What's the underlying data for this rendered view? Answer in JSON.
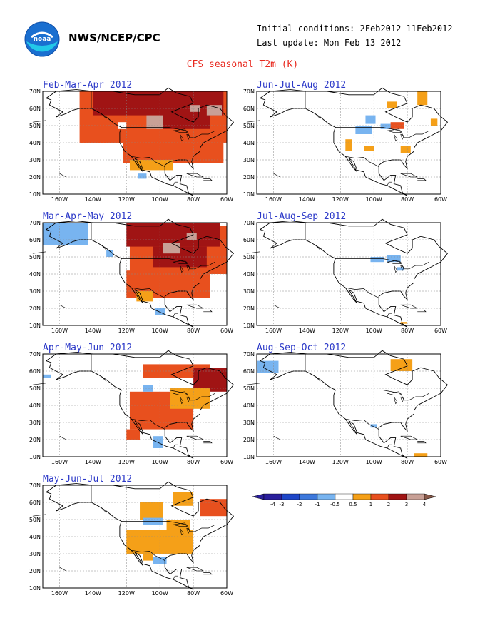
{
  "header": {
    "agency": "NWS/NCEP/CPC",
    "initial_conditions": "Initial conditions: 2Feb2012-11Feb2012",
    "last_update": "Last update: Mon Feb 13 2012",
    "title": "CFS seasonal T2m (K)",
    "logo_icon": "noaa-logo-icon"
  },
  "axes": {
    "lat_labels": [
      "70N",
      "60N",
      "50N",
      "40N",
      "30N",
      "20N",
      "10N"
    ],
    "lon_labels": [
      "160W",
      "140W",
      "120W",
      "100W",
      "80W",
      "60W"
    ]
  },
  "colors": {
    "-4": "#2a1f9c",
    "-3": "#1e46c8",
    "-2": "#3c78dc",
    "-1": "#78b4f0",
    "0": "#ffffff",
    "1": "#f5a018",
    "2": "#e8501e",
    "3": "#a01414",
    "4": "#c8a096"
  },
  "panels": [
    {
      "title": "Feb-Mar-Apr 2012",
      "patches": [
        {
          "lon": [
            -148,
            -60
          ],
          "lat": [
            40,
            70
          ],
          "c": 2
        },
        {
          "lon": [
            -122,
            -62
          ],
          "lat": [
            28,
            40
          ],
          "c": 2
        },
        {
          "lon": [
            -118,
            -92
          ],
          "lat": [
            24,
            30
          ],
          "c": 1
        },
        {
          "lon": [
            -140,
            -62
          ],
          "lat": [
            56,
            70
          ],
          "c": 3
        },
        {
          "lon": [
            -100,
            -70
          ],
          "lat": [
            48,
            60
          ],
          "c": 3
        },
        {
          "lon": [
            -108,
            -98
          ],
          "lat": [
            48,
            56
          ],
          "c": 4
        },
        {
          "lon": [
            -82,
            -76
          ],
          "lat": [
            58,
            62
          ],
          "c": 4
        },
        {
          "lon": [
            -72,
            -63
          ],
          "lat": [
            56,
            62
          ],
          "c": 4
        },
        {
          "lon": [
            -113,
            -108
          ],
          "lat": [
            19,
            22
          ],
          "c": -1
        },
        {
          "lon": [
            -125,
            -120
          ],
          "lat": [
            48,
            52
          ],
          "c": 0
        }
      ]
    },
    {
      "title": "Jun-Jul-Aug 2012",
      "patches": [
        {
          "lon": [
            -105,
            -99
          ],
          "lat": [
            51,
            56
          ],
          "c": -1
        },
        {
          "lon": [
            -111,
            -101
          ],
          "lat": [
            45,
            50
          ],
          "c": -1
        },
        {
          "lon": [
            -96,
            -88
          ],
          "lat": [
            48,
            51
          ],
          "c": -1
        },
        {
          "lon": [
            -92,
            -86
          ],
          "lat": [
            60,
            64
          ],
          "c": 1
        },
        {
          "lon": [
            -74,
            -68
          ],
          "lat": [
            62,
            70
          ],
          "c": 1
        },
        {
          "lon": [
            -66,
            -62
          ],
          "lat": [
            50,
            54
          ],
          "c": 1
        },
        {
          "lon": [
            -117,
            -113
          ],
          "lat": [
            35,
            42
          ],
          "c": 1
        },
        {
          "lon": [
            -106,
            -100
          ],
          "lat": [
            35,
            38
          ],
          "c": 1
        },
        {
          "lon": [
            -84,
            -78
          ],
          "lat": [
            34,
            38
          ],
          "c": 1
        },
        {
          "lon": [
            -90,
            -82
          ],
          "lat": [
            48,
            52
          ],
          "c": 2
        }
      ]
    },
    {
      "title": "Mar-Apr-May 2012",
      "patches": [
        {
          "lon": [
            -170,
            -143
          ],
          "lat": [
            57,
            70
          ],
          "c": -1
        },
        {
          "lon": [
            -132,
            -128
          ],
          "lat": [
            50,
            54
          ],
          "c": -1
        },
        {
          "lon": [
            -118,
            -60
          ],
          "lat": [
            40,
            68
          ],
          "c": 2
        },
        {
          "lon": [
            -120,
            -70
          ],
          "lat": [
            26,
            42
          ],
          "c": 2
        },
        {
          "lon": [
            -120,
            -64
          ],
          "lat": [
            56,
            70
          ],
          "c": 3
        },
        {
          "lon": [
            -104,
            -72
          ],
          "lat": [
            44,
            56
          ],
          "c": 3
        },
        {
          "lon": [
            -98,
            -88
          ],
          "lat": [
            52,
            58
          ],
          "c": 4
        },
        {
          "lon": [
            -84,
            -78
          ],
          "lat": [
            60,
            64
          ],
          "c": 4
        },
        {
          "lon": [
            -114,
            -104
          ],
          "lat": [
            24,
            30
          ],
          "c": 1
        },
        {
          "lon": [
            -103,
            -97
          ],
          "lat": [
            16,
            20
          ],
          "c": -1
        }
      ]
    },
    {
      "title": "Jul-Aug-Sep 2012",
      "patches": [
        {
          "lon": [
            -102,
            -94
          ],
          "lat": [
            47,
            50
          ],
          "c": -1
        },
        {
          "lon": [
            -92,
            -84
          ],
          "lat": [
            47,
            51
          ],
          "c": -1
        },
        {
          "lon": [
            -86,
            -82
          ],
          "lat": [
            42,
            44
          ],
          "c": -1
        },
        {
          "lon": [
            -84,
            -80
          ],
          "lat": [
            11,
            12
          ],
          "c": 1
        }
      ]
    },
    {
      "title": "Apr-May-Jun 2012",
      "patches": [
        {
          "lon": [
            -170,
            -165
          ],
          "lat": [
            56,
            58
          ],
          "c": -1
        },
        {
          "lon": [
            -118,
            -80
          ],
          "lat": [
            26,
            48
          ],
          "c": 2
        },
        {
          "lon": [
            -110,
            -70
          ],
          "lat": [
            56,
            64
          ],
          "c": 2
        },
        {
          "lon": [
            -80,
            -60
          ],
          "lat": [
            48,
            62
          ],
          "c": 3
        },
        {
          "lon": [
            -94,
            -70
          ],
          "lat": [
            38,
            50
          ],
          "c": 1
        },
        {
          "lon": [
            -120,
            -112
          ],
          "lat": [
            20,
            26
          ],
          "c": 2
        },
        {
          "lon": [
            -110,
            -104
          ],
          "lat": [
            48,
            52
          ],
          "c": -1
        },
        {
          "lon": [
            -104,
            -98
          ],
          "lat": [
            15,
            22
          ],
          "c": -1
        }
      ]
    },
    {
      "title": "Aug-Sep-Oct 2012",
      "patches": [
        {
          "lon": [
            -170,
            -157
          ],
          "lat": [
            59,
            66
          ],
          "c": -1
        },
        {
          "lon": [
            -90,
            -77
          ],
          "lat": [
            60,
            67
          ],
          "c": 1
        },
        {
          "lon": [
            -102,
            -98
          ],
          "lat": [
            27,
            29
          ],
          "c": -1
        },
        {
          "lon": [
            -76,
            -68
          ],
          "lat": [
            10,
            12
          ],
          "c": 1
        }
      ]
    },
    {
      "title": "May-Jun-Jul 2012",
      "patches": [
        {
          "lon": [
            -112,
            -98
          ],
          "lat": [
            50,
            60
          ],
          "c": 1
        },
        {
          "lon": [
            -110,
            -98
          ],
          "lat": [
            47,
            51
          ],
          "c": -1
        },
        {
          "lon": [
            -120,
            -80
          ],
          "lat": [
            30,
            44
          ],
          "c": 1
        },
        {
          "lon": [
            -76,
            -60
          ],
          "lat": [
            52,
            62
          ],
          "c": 2
        },
        {
          "lon": [
            -92,
            -80
          ],
          "lat": [
            58,
            66
          ],
          "c": 1
        },
        {
          "lon": [
            -96,
            -82
          ],
          "lat": [
            44,
            50
          ],
          "c": 1
        },
        {
          "lon": [
            -104,
            -96
          ],
          "lat": [
            24,
            28
          ],
          "c": -1
        },
        {
          "lon": [
            -110,
            -104
          ],
          "lat": [
            26,
            30
          ],
          "c": 1
        }
      ]
    }
  ],
  "legend": {
    "labels": [
      "-4",
      "-3",
      "-2",
      "-1",
      "-0.5",
      "0.5",
      "1",
      "2",
      "3",
      "4"
    ]
  }
}
